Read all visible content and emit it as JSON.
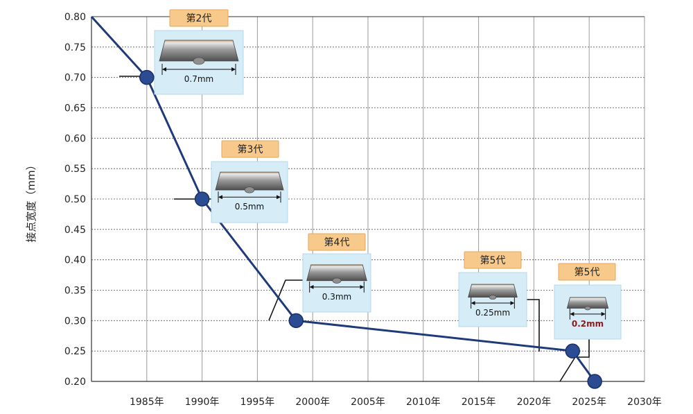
{
  "chart_data": {
    "type": "line",
    "ylabel": "接点宽度（mm）",
    "ylim": [
      0.2,
      0.8
    ],
    "yticks": [
      "0.80",
      "0.75",
      "0.70",
      "0.65",
      "0.60",
      "0.55",
      "0.50",
      "0.45",
      "0.40",
      "0.35",
      "0.30",
      "0.25",
      "0.20"
    ],
    "xlim": [
      1980,
      2030
    ],
    "xtick_years": [
      1985,
      1990,
      1995,
      2000,
      2005,
      2010,
      2015,
      2020,
      2025,
      2030
    ],
    "xticks": [
      "1985年",
      "1990年",
      "1995年",
      "2000年",
      "2005年",
      "2010年",
      "2015年",
      "2020年",
      "2025年",
      "2030年"
    ],
    "grid": true,
    "line_color": "#1f3a7a",
    "marker_color": "#2b4c93",
    "points": [
      {
        "x": 1980,
        "y": 0.8
      },
      {
        "x": 1985,
        "y": 0.7
      },
      {
        "x": 1990,
        "y": 0.5
      },
      {
        "x": 1998.5,
        "y": 0.3
      },
      {
        "x": 2023.5,
        "y": 0.25
      },
      {
        "x": 2025.5,
        "y": 0.2
      }
    ],
    "annotations": [
      {
        "generation": "第2代",
        "width": "0.7mm",
        "point_index": 1,
        "highlight": false
      },
      {
        "generation": "第3代",
        "width": "0.5mm",
        "point_index": 2,
        "highlight": false
      },
      {
        "generation": "第4代",
        "width": "0.3mm",
        "point_index": 3,
        "highlight": false
      },
      {
        "generation": "第5代",
        "width": "0.25mm",
        "point_index": 4,
        "highlight": false
      },
      {
        "generation": "第5代",
        "width": "0.2mm",
        "point_index": 5,
        "highlight": true
      }
    ]
  }
}
